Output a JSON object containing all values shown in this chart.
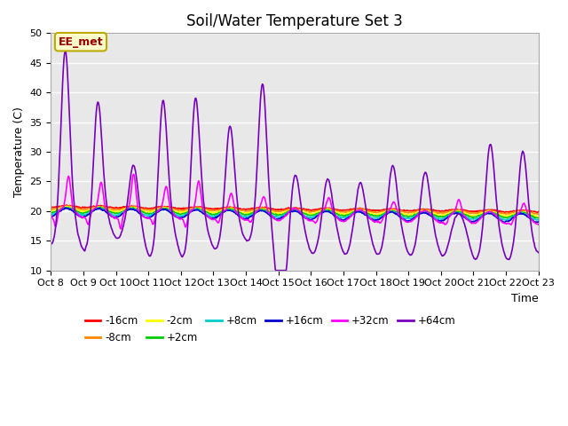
{
  "title": "Soil/Water Temperature Set 3",
  "xlabel": "Time",
  "ylabel": "Temperature (C)",
  "ylim": [
    10,
    50
  ],
  "xlim": [
    0,
    15
  ],
  "x_tick_labels": [
    "Oct 8",
    "Oct 9",
    "Oct 10",
    "Oct 11",
    "Oct 12",
    "Oct 13",
    "Oct 14",
    "Oct 15",
    "Oct 16",
    "Oct 17",
    "Oct 18",
    "Oct 19",
    "Oct 20",
    "Oct 21",
    "Oct 22",
    "Oct 23"
  ],
  "annotation_text": "EE_met",
  "annotation_bg": "#ffffcc",
  "annotation_border": "#bbaa00",
  "annotation_text_color": "#990000",
  "series": {
    "-16cm": {
      "color": "#ff0000",
      "lw": 1.2
    },
    "-8cm": {
      "color": "#ff8800",
      "lw": 1.2
    },
    "-2cm": {
      "color": "#ffff00",
      "lw": 1.2
    },
    "+2cm": {
      "color": "#00cc00",
      "lw": 1.2
    },
    "+8cm": {
      "color": "#00cccc",
      "lw": 1.2
    },
    "+16cm": {
      "color": "#0000cc",
      "lw": 1.2
    },
    "+32cm": {
      "color": "#ff00ff",
      "lw": 1.2
    },
    "+64cm": {
      "color": "#7700bb",
      "lw": 1.2
    }
  },
  "bg_color": "#e8e8e8",
  "grid_color": "#ffffff",
  "title_fontsize": 12
}
